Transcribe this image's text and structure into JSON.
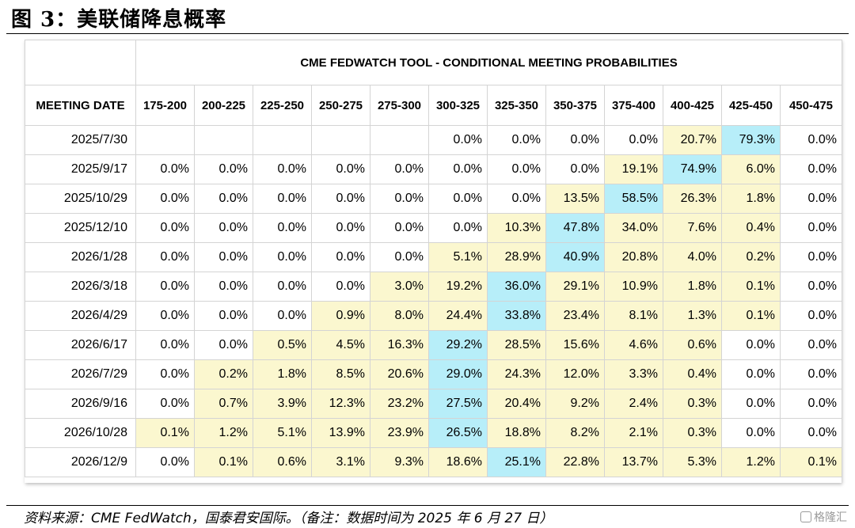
{
  "figure": {
    "title": "图 3：美联储降息概率",
    "source_note": "资料来源：CME FedWatch，国泰君安国际。（备注：数据时间为 2025 年 6 月 27 日）",
    "watermark": "格隆汇"
  },
  "colors": {
    "none": "#ffffff",
    "low": "#fbf7cf",
    "max": "#b7eef9"
  },
  "chart_data": {
    "type": "table",
    "title": "CME FEDWATCH TOOL - CONDITIONAL MEETING PROBABILITIES",
    "row_header": "MEETING DATE",
    "columns": [
      "175-200",
      "200-225",
      "225-250",
      "250-275",
      "275-300",
      "300-325",
      "325-350",
      "350-375",
      "375-400",
      "400-425",
      "425-450",
      "450-475"
    ],
    "rows": [
      {
        "date": "2025/7/30",
        "values": [
          "",
          "",
          "",
          "",
          "",
          "0.0%",
          "0.0%",
          "0.0%",
          "0.0%",
          "20.7%",
          "79.3%",
          "0.0%"
        ],
        "shade": [
          "n",
          "n",
          "n",
          "n",
          "n",
          "n",
          "n",
          "n",
          "n",
          "y",
          "c",
          "n"
        ]
      },
      {
        "date": "2025/9/17",
        "values": [
          "0.0%",
          "0.0%",
          "0.0%",
          "0.0%",
          "0.0%",
          "0.0%",
          "0.0%",
          "0.0%",
          "19.1%",
          "74.9%",
          "6.0%",
          "0.0%"
        ],
        "shade": [
          "n",
          "n",
          "n",
          "n",
          "n",
          "n",
          "n",
          "n",
          "y",
          "c",
          "y",
          "n"
        ]
      },
      {
        "date": "2025/10/29",
        "values": [
          "0.0%",
          "0.0%",
          "0.0%",
          "0.0%",
          "0.0%",
          "0.0%",
          "0.0%",
          "13.5%",
          "58.5%",
          "26.3%",
          "1.8%",
          "0.0%"
        ],
        "shade": [
          "n",
          "n",
          "n",
          "n",
          "n",
          "n",
          "n",
          "y",
          "c",
          "y",
          "y",
          "n"
        ]
      },
      {
        "date": "2025/12/10",
        "values": [
          "0.0%",
          "0.0%",
          "0.0%",
          "0.0%",
          "0.0%",
          "0.0%",
          "10.3%",
          "47.8%",
          "34.0%",
          "7.6%",
          "0.4%",
          "0.0%"
        ],
        "shade": [
          "n",
          "n",
          "n",
          "n",
          "n",
          "n",
          "y",
          "c",
          "y",
          "y",
          "y",
          "n"
        ]
      },
      {
        "date": "2026/1/28",
        "values": [
          "0.0%",
          "0.0%",
          "0.0%",
          "0.0%",
          "0.0%",
          "5.1%",
          "28.9%",
          "40.9%",
          "20.8%",
          "4.0%",
          "0.2%",
          "0.0%"
        ],
        "shade": [
          "n",
          "n",
          "n",
          "n",
          "n",
          "y",
          "y",
          "c",
          "y",
          "y",
          "y",
          "n"
        ]
      },
      {
        "date": "2026/3/18",
        "values": [
          "0.0%",
          "0.0%",
          "0.0%",
          "0.0%",
          "3.0%",
          "19.2%",
          "36.0%",
          "29.1%",
          "10.9%",
          "1.8%",
          "0.1%",
          "0.0%"
        ],
        "shade": [
          "n",
          "n",
          "n",
          "n",
          "y",
          "y",
          "c",
          "y",
          "y",
          "y",
          "y",
          "n"
        ]
      },
      {
        "date": "2026/4/29",
        "values": [
          "0.0%",
          "0.0%",
          "0.0%",
          "0.9%",
          "8.0%",
          "24.4%",
          "33.8%",
          "23.4%",
          "8.1%",
          "1.3%",
          "0.1%",
          "0.0%"
        ],
        "shade": [
          "n",
          "n",
          "n",
          "y",
          "y",
          "y",
          "c",
          "y",
          "y",
          "y",
          "y",
          "n"
        ]
      },
      {
        "date": "2026/6/17",
        "values": [
          "0.0%",
          "0.0%",
          "0.5%",
          "4.5%",
          "16.3%",
          "29.2%",
          "28.5%",
          "15.6%",
          "4.6%",
          "0.6%",
          "0.0%",
          "0.0%"
        ],
        "shade": [
          "n",
          "n",
          "y",
          "y",
          "y",
          "c",
          "y",
          "y",
          "y",
          "y",
          "n",
          "n"
        ]
      },
      {
        "date": "2026/7/29",
        "values": [
          "0.0%",
          "0.2%",
          "1.8%",
          "8.5%",
          "20.6%",
          "29.0%",
          "24.3%",
          "12.0%",
          "3.3%",
          "0.4%",
          "0.0%",
          "0.0%"
        ],
        "shade": [
          "n",
          "y",
          "y",
          "y",
          "y",
          "c",
          "y",
          "y",
          "y",
          "y",
          "n",
          "n"
        ]
      },
      {
        "date": "2026/9/16",
        "values": [
          "0.0%",
          "0.7%",
          "3.9%",
          "12.3%",
          "23.2%",
          "27.5%",
          "20.4%",
          "9.2%",
          "2.4%",
          "0.3%",
          "0.0%",
          "0.0%"
        ],
        "shade": [
          "n",
          "y",
          "y",
          "y",
          "y",
          "c",
          "y",
          "y",
          "y",
          "y",
          "n",
          "n"
        ]
      },
      {
        "date": "2026/10/28",
        "values": [
          "0.1%",
          "1.2%",
          "5.1%",
          "13.9%",
          "23.9%",
          "26.5%",
          "18.8%",
          "8.2%",
          "2.1%",
          "0.3%",
          "0.0%",
          "0.0%"
        ],
        "shade": [
          "y",
          "y",
          "y",
          "y",
          "y",
          "c",
          "y",
          "y",
          "y",
          "y",
          "n",
          "n"
        ]
      },
      {
        "date": "2026/12/9",
        "values": [
          "0.0%",
          "0.1%",
          "0.6%",
          "3.1%",
          "9.3%",
          "18.6%",
          "25.1%",
          "22.8%",
          "13.7%",
          "5.3%",
          "1.2%",
          "0.1%"
        ],
        "shade": [
          "n",
          "y",
          "y",
          "y",
          "y",
          "y",
          "c",
          "y",
          "y",
          "y",
          "y",
          "y"
        ]
      }
    ]
  }
}
